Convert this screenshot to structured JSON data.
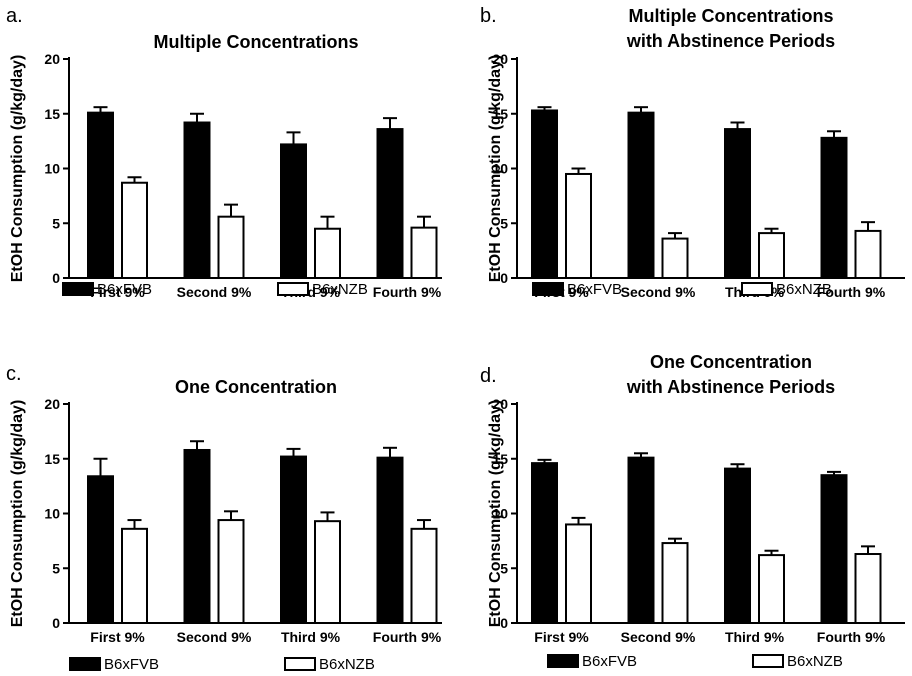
{
  "chart_data": [
    {
      "panel": "a.",
      "type": "bar",
      "title": [
        "Multiple Concentrations"
      ],
      "ylabel": "EtOH Consumption (g/kg/day)",
      "ylim": [
        0,
        20
      ],
      "yticks": [
        "0",
        "5",
        "10",
        "15",
        "20"
      ],
      "categories": [
        "First 9%",
        "Second 9%",
        "Third 9%",
        "Fourth 9%"
      ],
      "series": [
        {
          "name": "B6xFVB",
          "color": "#000000",
          "values": [
            15.1,
            14.2,
            12.2,
            13.6
          ],
          "errors": [
            0.5,
            0.8,
            1.1,
            1.0
          ]
        },
        {
          "name": "B6xNZB",
          "color": "#ffffff",
          "values": [
            8.7,
            5.6,
            4.5,
            4.6
          ],
          "errors": [
            0.5,
            1.1,
            1.1,
            1.0
          ]
        }
      ],
      "legend": "bottom"
    },
    {
      "panel": "b.",
      "type": "bar",
      "title": [
        "Multiple Concentrations",
        "with Abstinence Periods"
      ],
      "ylabel": "EtOH Consumption (g/kg/day)",
      "ylim": [
        0,
        20
      ],
      "yticks": [
        "0",
        "5",
        "10",
        "15",
        "20"
      ],
      "categories": [
        "First 9%",
        "Second 9%",
        "Third 9%",
        "Fourth 9%"
      ],
      "series": [
        {
          "name": "B6xFVB",
          "color": "#000000",
          "values": [
            15.3,
            15.1,
            13.6,
            12.8
          ],
          "errors": [
            0.3,
            0.5,
            0.6,
            0.6
          ]
        },
        {
          "name": "B6xNZB",
          "color": "#ffffff",
          "values": [
            9.5,
            3.6,
            4.1,
            4.3
          ],
          "errors": [
            0.5,
            0.5,
            0.4,
            0.8
          ]
        }
      ],
      "legend": "bottom"
    },
    {
      "panel": "c.",
      "type": "bar",
      "title": [
        "One Concentration"
      ],
      "ylabel": "EtOH Consumption (g/kg/day)",
      "ylim": [
        0,
        20
      ],
      "yticks": [
        "0",
        "5",
        "10",
        "15",
        "20"
      ],
      "categories": [
        "First 9%",
        "Second 9%",
        "Third 9%",
        "Fourth 9%"
      ],
      "series": [
        {
          "name": "B6xFVB",
          "color": "#000000",
          "values": [
            13.4,
            15.8,
            15.2,
            15.1
          ],
          "errors": [
            1.6,
            0.8,
            0.7,
            0.9
          ]
        },
        {
          "name": "B6xNZB",
          "color": "#ffffff",
          "values": [
            8.6,
            9.4,
            9.3,
            8.6
          ],
          "errors": [
            0.8,
            0.8,
            0.8,
            0.8
          ]
        }
      ],
      "legend": "bottom"
    },
    {
      "panel": "d.",
      "type": "bar",
      "title": [
        "One Concentration",
        "with Abstinence Periods"
      ],
      "ylabel": "EtOH Consumption (g/kg/day)",
      "ylim": [
        0,
        20
      ],
      "yticks": [
        "0",
        "5",
        "10",
        "15",
        "20"
      ],
      "categories": [
        "First 9%",
        "Second 9%",
        "Third 9%",
        "Fourth 9%"
      ],
      "series": [
        {
          "name": "B6xFVB",
          "color": "#000000",
          "values": [
            14.6,
            15.1,
            14.1,
            13.5
          ],
          "errors": [
            0.3,
            0.4,
            0.4,
            0.3
          ]
        },
        {
          "name": "B6xNZB",
          "color": "#ffffff",
          "values": [
            9.0,
            7.3,
            6.2,
            6.3
          ],
          "errors": [
            0.6,
            0.4,
            0.4,
            0.7
          ]
        }
      ],
      "legend": "bottom"
    }
  ]
}
